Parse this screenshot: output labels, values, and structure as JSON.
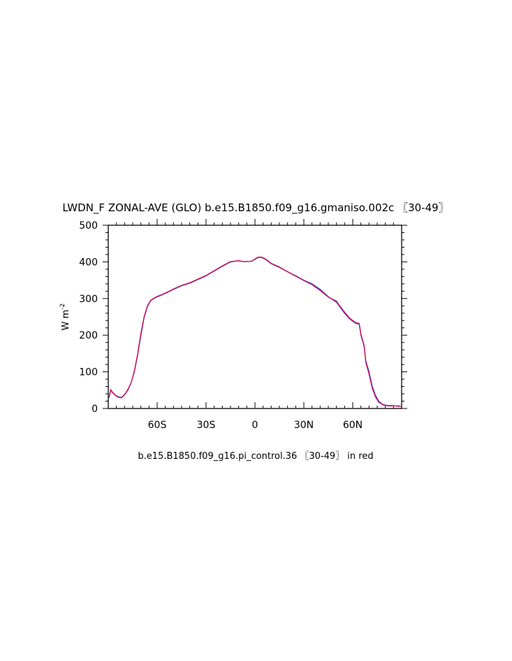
{
  "chart_data": {
    "type": "line",
    "title": "LWDN_F ZONAL-AVE (GLO) b.e15.B1850.f09_g16.gmaniso.002c 〖30-49〗",
    "ylabel": "W m",
    "ylabel_sup": "-2",
    "footer": "b.e15.B1850.f09_g16.pi_control.36 〖30-49〗 in red",
    "xlim": [
      -90,
      90
    ],
    "ylim": [
      0,
      500
    ],
    "x_ticks": [
      {
        "value": -60,
        "label": "60S"
      },
      {
        "value": -30,
        "label": "30S"
      },
      {
        "value": 0,
        "label": "0"
      },
      {
        "value": 30,
        "label": "30N"
      },
      {
        "value": 60,
        "label": "60N"
      }
    ],
    "y_ticks": [
      {
        "value": 0,
        "label": "0"
      },
      {
        "value": 100,
        "label": "100"
      },
      {
        "value": 200,
        "label": "200"
      },
      {
        "value": 300,
        "label": "300"
      },
      {
        "value": 400,
        "label": "400"
      },
      {
        "value": 500,
        "label": "500"
      }
    ],
    "grid": false,
    "series": [
      {
        "color": "#2b3bd8",
        "x": [
          -89.5,
          -88.5,
          -87.5,
          -86,
          -84,
          -82,
          -80,
          -78,
          -76,
          -74,
          -72,
          -70,
          -68,
          -66,
          -64,
          -62,
          -60,
          -58,
          -56,
          -54,
          -50,
          -45,
          -40,
          -35,
          -30,
          -25,
          -20,
          -15,
          -10,
          -7,
          -5,
          -2,
          0,
          2,
          4,
          6,
          8,
          10,
          15,
          20,
          25,
          30,
          35,
          40,
          45,
          50,
          52,
          55,
          58,
          60,
          62,
          64,
          65,
          67,
          68,
          70,
          72,
          74,
          76,
          78,
          80,
          82,
          84,
          86,
          88,
          89.5
        ],
        "y": [
          30,
          50,
          45,
          38,
          32,
          30,
          38,
          50,
          70,
          100,
          145,
          200,
          248,
          278,
          294,
          300,
          305,
          308,
          312,
          316,
          325,
          335,
          342,
          352,
          362,
          375,
          388,
          400,
          403,
          401,
          401,
          402,
          407,
          412,
          412,
          408,
          402,
          395,
          385,
          373,
          362,
          350,
          340,
          325,
          305,
          290,
          278,
          260,
          245,
          238,
          232,
          230,
          200,
          170,
          130,
          100,
          60,
          35,
          20,
          12,
          9,
          8,
          8,
          7,
          7,
          6
        ]
      },
      {
        "color": "#d4145a",
        "x": [
          -89.5,
          -88.5,
          -87.5,
          -86,
          -84,
          -82,
          -80,
          -78,
          -76,
          -74,
          -72,
          -70,
          -68,
          -66,
          -64,
          -62,
          -60,
          -58,
          -56,
          -54,
          -50,
          -45,
          -40,
          -35,
          -30,
          -25,
          -20,
          -15,
          -10,
          -7,
          -5,
          -2,
          0,
          2,
          4,
          6,
          8,
          10,
          15,
          20,
          25,
          30,
          35,
          40,
          45,
          50,
          52,
          55,
          58,
          60,
          62,
          64,
          65,
          67,
          68,
          70,
          72,
          74,
          76,
          78,
          80,
          82,
          84,
          86,
          88,
          89.5
        ],
        "y": [
          30,
          52,
          44,
          37,
          31,
          29,
          37,
          52,
          70,
          102,
          148,
          205,
          250,
          280,
          295,
          301,
          306,
          309,
          313,
          317,
          326,
          336,
          343,
          353,
          363,
          376,
          389,
          401,
          403,
          401,
          401,
          402,
          408,
          413,
          413,
          409,
          403,
          396,
          386,
          373,
          361,
          349,
          338,
          322,
          304,
          293,
          280,
          263,
          247,
          240,
          234,
          232,
          203,
          172,
          126,
          94,
          55,
          31,
          17,
          11,
          8,
          7,
          7,
          7,
          6,
          6
        ]
      }
    ]
  }
}
